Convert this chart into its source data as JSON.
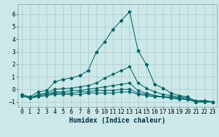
{
  "xlabel": "Humidex (Indice chaleur)",
  "ylabel": "",
  "background_color": "#cde8e8",
  "grid_color": "#aac8c8",
  "line_color": "#006868",
  "x_values": [
    0,
    1,
    2,
    3,
    4,
    5,
    6,
    7,
    8,
    9,
    10,
    11,
    12,
    13,
    14,
    15,
    16,
    17,
    18,
    19,
    20,
    21,
    22,
    23
  ],
  "series": [
    [
      -0.4,
      -0.6,
      -0.2,
      -0.1,
      0.6,
      0.8,
      0.9,
      1.1,
      1.5,
      3.0,
      3.8,
      4.8,
      5.5,
      6.2,
      3.1,
      2.0,
      0.4,
      0.1,
      -0.3,
      -0.5,
      -0.6,
      -1.0,
      -0.9,
      -1.0
    ],
    [
      -0.5,
      -0.7,
      -0.4,
      -0.3,
      0.0,
      0.05,
      0.1,
      0.2,
      0.3,
      0.5,
      0.9,
      1.2,
      1.5,
      1.8,
      0.5,
      0.1,
      -0.2,
      -0.4,
      -0.5,
      -0.6,
      -0.7,
      -0.9,
      -0.9,
      -1.0
    ],
    [
      -0.5,
      -0.7,
      -0.5,
      -0.4,
      -0.2,
      -0.2,
      -0.1,
      -0.1,
      0.0,
      0.1,
      0.2,
      0.3,
      0.4,
      0.5,
      -0.1,
      -0.3,
      -0.5,
      -0.6,
      -0.6,
      -0.7,
      -0.8,
      -1.0,
      -1.0,
      -1.0
    ],
    [
      -0.5,
      -0.7,
      -0.5,
      -0.4,
      -0.3,
      -0.3,
      -0.3,
      -0.2,
      -0.2,
      -0.1,
      -0.1,
      -0.1,
      0.0,
      0.0,
      -0.3,
      -0.4,
      -0.5,
      -0.6,
      -0.7,
      -0.7,
      -0.8,
      -1.0,
      -1.0,
      -1.0
    ],
    [
      -0.5,
      -0.7,
      -0.6,
      -0.5,
      -0.4,
      -0.4,
      -0.4,
      -0.4,
      -0.3,
      -0.3,
      -0.3,
      -0.3,
      -0.2,
      -0.2,
      -0.4,
      -0.5,
      -0.6,
      -0.6,
      -0.7,
      -0.8,
      -0.8,
      -1.0,
      -1.0,
      -1.0
    ]
  ],
  "ylim": [
    -1.4,
    6.8
  ],
  "xlim": [
    -0.5,
    23.5
  ],
  "yticks": [
    -1,
    0,
    1,
    2,
    3,
    4,
    5,
    6
  ],
  "xticks": [
    0,
    1,
    2,
    3,
    4,
    5,
    6,
    7,
    8,
    9,
    10,
    11,
    12,
    13,
    14,
    15,
    16,
    17,
    18,
    19,
    20,
    21,
    22,
    23
  ],
  "xtick_labels": [
    "0",
    "1",
    "2",
    "3",
    "4",
    "5",
    "6",
    "7",
    "8",
    "9",
    "10",
    "11",
    "12",
    "13",
    "14",
    "15",
    "16",
    "17",
    "18",
    "19",
    "20",
    "21",
    "22",
    "23"
  ],
  "marker": "*",
  "marker_size": 3.5,
  "linewidth": 0.8,
  "xlabel_fontsize": 7,
  "tick_fontsize": 6
}
